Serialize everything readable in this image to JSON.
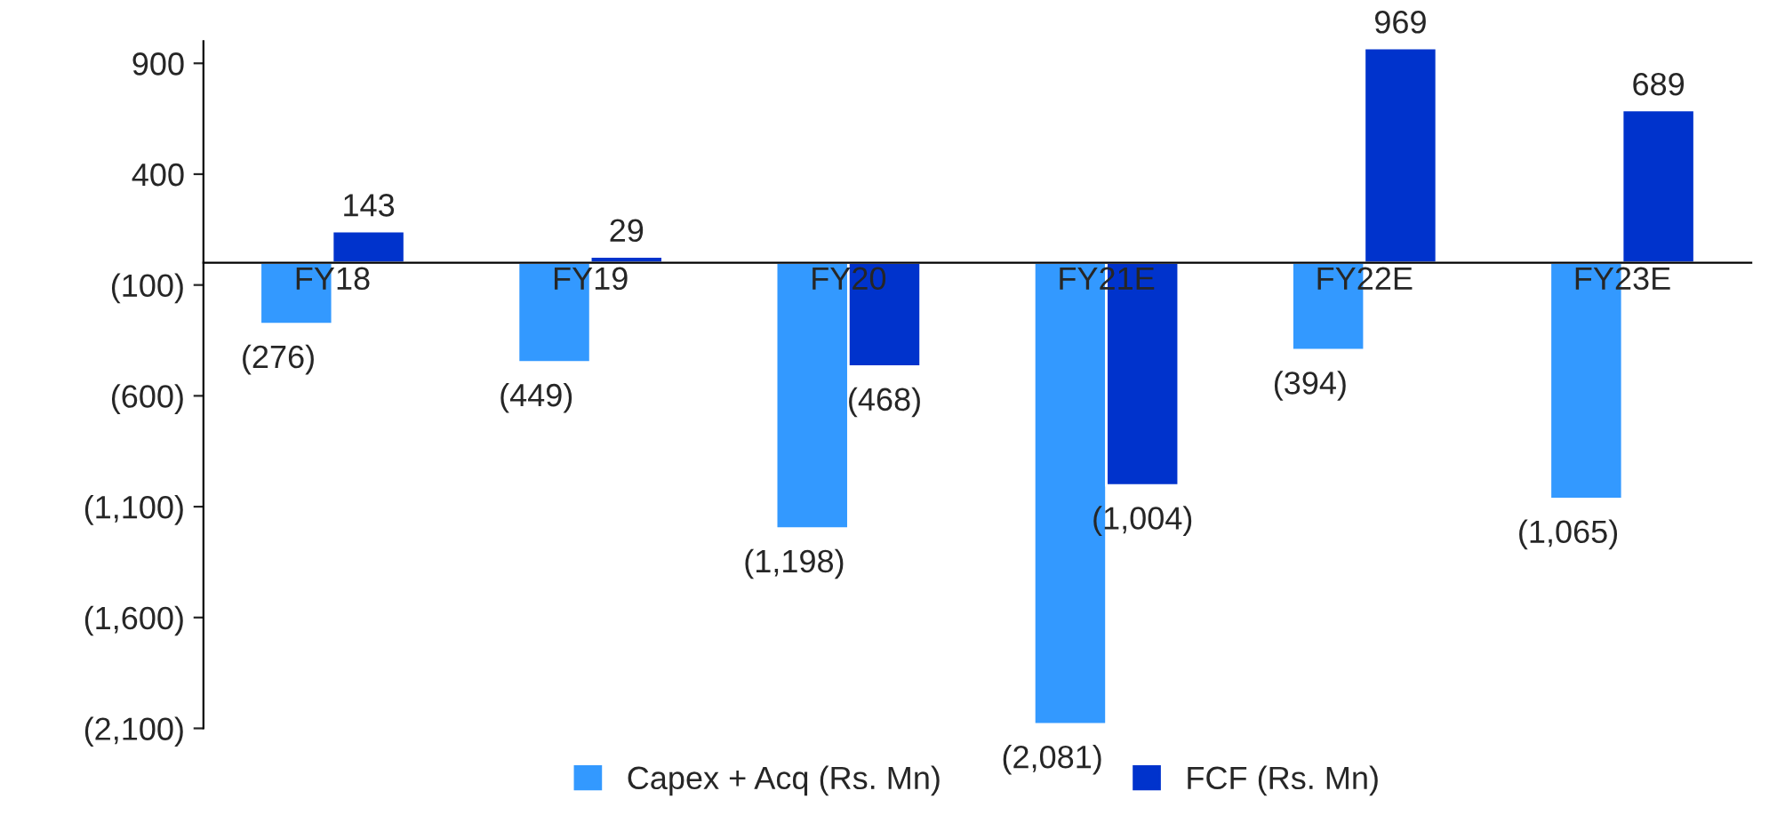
{
  "chart_data": {
    "type": "bar",
    "categories": [
      "FY18",
      "FY19",
      "FY20",
      "FY21E",
      "FY22E",
      "FY23E"
    ],
    "series": [
      {
        "name": "Capex + Acq (Rs. Mn)",
        "color": "#3399ff",
        "values": [
          -276,
          -449,
          -1198,
          -2081,
          -394,
          -1065
        ],
        "value_labels": [
          "(276)",
          "(449)",
          "(1,198)",
          "(2,081)",
          "(394)",
          "(1,065)"
        ]
      },
      {
        "name": "FCF (Rs. Mn)",
        "color": "#0033cc",
        "values": [
          143,
          29,
          -468,
          -1004,
          969,
          689
        ],
        "value_labels": [
          "143",
          "29",
          "(468)",
          "(1,004)",
          "969",
          "689"
        ]
      }
    ],
    "ylim": [
      -2100,
      1000
    ],
    "yticks": [
      {
        "value": 900,
        "label": "900"
      },
      {
        "value": 400,
        "label": "400"
      },
      {
        "value": -100,
        "label": "(100)"
      },
      {
        "value": -600,
        "label": "(600)"
      },
      {
        "value": -1100,
        "label": "(1,100)"
      },
      {
        "value": -1600,
        "label": "(1,600)"
      },
      {
        "value": -2100,
        "label": "(2,100)"
      }
    ],
    "grid": false,
    "legend": "bottom"
  }
}
